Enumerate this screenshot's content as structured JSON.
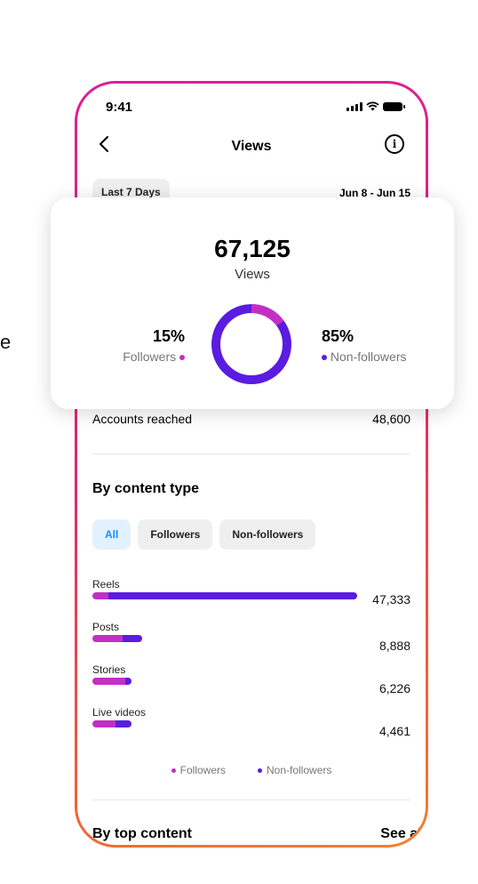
{
  "edge_text": "e",
  "status": {
    "time": "9:41"
  },
  "nav": {
    "title": "Views"
  },
  "range": {
    "chip_label": "Last 7 Days",
    "dates": "Jun 8 - Jun 15"
  },
  "summary": {
    "total": "67,125",
    "total_label": "Views",
    "followers_pct": "15%",
    "followers_label": "Followers",
    "nonfollowers_pct": "85%",
    "nonfollowers_label": "Non-followers",
    "donut": {
      "followers_fraction": 0.15,
      "nonfollowers_fraction": 0.85
    }
  },
  "accounts_reached": {
    "label": "Accounts reached",
    "value": "48,600"
  },
  "content_type": {
    "title": "By content type",
    "filters": [
      {
        "label": "All",
        "active": true
      },
      {
        "label": "Followers",
        "active": false
      },
      {
        "label": "Non-followers",
        "active": false
      }
    ],
    "rows": [
      {
        "label": "Reels",
        "value": "47,333",
        "total": 47333,
        "followers_fraction": 0.06
      },
      {
        "label": "Posts",
        "value": "8,888",
        "total": 8888,
        "followers_fraction": 0.6
      },
      {
        "label": "Stories",
        "value": "6,226",
        "total": 6226,
        "followers_fraction": 0.85
      },
      {
        "label": "Live videos",
        "value": "4,461",
        "total": 4461,
        "followers_fraction": 0.58
      }
    ],
    "legend": {
      "followers": "Followers",
      "nonfollowers": "Non-followers"
    }
  },
  "top_content": {
    "title": "By top content",
    "see_all": "See all"
  },
  "colors": {
    "followers": "#c22fc4",
    "nonfollowers": "#5a1ce0",
    "accent_blue": "#1a8cff",
    "frame_gradient": [
      "#d9209b",
      "#f38030"
    ]
  },
  "icons": {
    "back": "chevron-left-icon",
    "info": "info-icon"
  }
}
